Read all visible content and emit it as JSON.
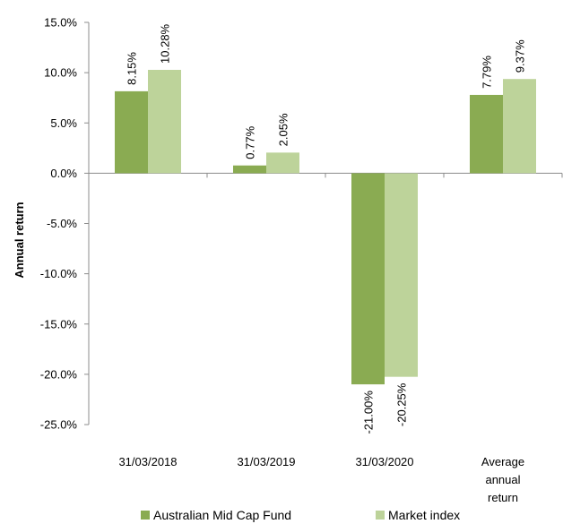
{
  "chart_data": {
    "type": "bar",
    "categories": [
      "31/03/2018",
      "31/03/2019",
      "31/03/2020",
      "Average annual return"
    ],
    "category_lines": [
      [
        "31/03/2018"
      ],
      [
        "31/03/2019"
      ],
      [
        "31/03/2020"
      ],
      [
        "Average",
        "annual",
        "return"
      ]
    ],
    "series": [
      {
        "name": "Australian Mid Cap Fund",
        "values": [
          8.15,
          0.77,
          -21.0,
          7.79
        ],
        "labels": [
          "8.15%",
          "0.77%",
          "-21.00%",
          "7.79%"
        ],
        "color": "#8aab52"
      },
      {
        "name": "Market index",
        "values": [
          10.28,
          2.05,
          -20.25,
          9.37
        ],
        "labels": [
          "10.28%",
          "2.05%",
          "-20.25%",
          "9.37%"
        ],
        "color": "#bdd39a"
      }
    ],
    "ylabel": "Annual return",
    "ylim": [
      -25,
      15
    ],
    "yticks": [
      15,
      10,
      5,
      0,
      -5,
      -10,
      -15,
      -20,
      -25
    ],
    "ytick_labels": [
      "15.0%",
      "10.0%",
      "5.0%",
      "0.0%",
      "-5.0%",
      "-10.0%",
      "-15.0%",
      "-20.0%",
      "-25.0%"
    ],
    "grid": false,
    "legend_position": "bottom"
  }
}
